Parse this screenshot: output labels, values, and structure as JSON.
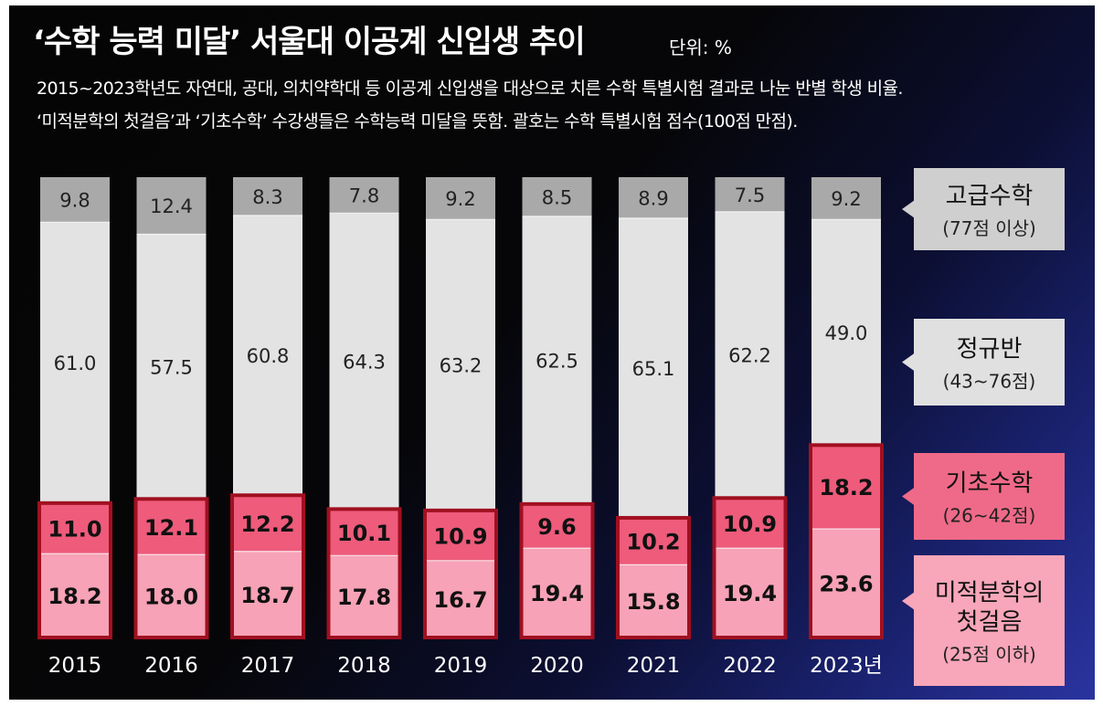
{
  "title": "‘수학 능력 미달’ 서울대 이공계 신입생 추이",
  "unit": "단위: %",
  "subtitle_line1": "2015~2023학년도 자연대, 공대, 의치약학대 등 이공계 신입생을 대상으로 치른 수학 특별시험 결과로 나눈 반별 학생 비율.",
  "subtitle_line2": "‘미적분학의 첫걸음’과 ‘기초수학’ 수강생들은 수학능력 미달을 뜻함. 괄호는 수학 특별시험 점수(100점 만점).",
  "chart_data": {
    "type": "bar",
    "stacked": true,
    "unit": "%",
    "categories": [
      "2015",
      "2016",
      "2017",
      "2018",
      "2019",
      "2020",
      "2021",
      "2022",
      "2023년"
    ],
    "series": [
      {
        "name": "미적분학의 첫걸음",
        "range": "(25점 이하)",
        "values": [
          18.2,
          18.0,
          18.7,
          17.8,
          16.7,
          19.4,
          15.8,
          19.4,
          23.6
        ],
        "color": "#f7a2b6"
      },
      {
        "name": "기초수학",
        "range": "(26~42점)",
        "values": [
          11.0,
          12.1,
          12.2,
          10.1,
          10.9,
          9.6,
          10.2,
          10.9,
          18.2
        ],
        "color": "#ee5b7b"
      },
      {
        "name": "정규반",
        "range": "(43~76점)",
        "values": [
          61.0,
          57.5,
          60.8,
          64.3,
          63.2,
          62.5,
          65.1,
          62.2,
          49.0
        ],
        "color": "#e3e3e3"
      },
      {
        "name": "고급수학",
        "range": "(77점 이상)",
        "values": [
          9.8,
          12.4,
          8.3,
          7.8,
          9.2,
          8.5,
          8.9,
          7.5,
          9.2
        ],
        "color": "#a9a9a9"
      }
    ],
    "legend_labels": [
      {
        "series": "고급수학",
        "lines": [
          "고급수학"
        ],
        "range": "(77점 이상)"
      },
      {
        "series": "정규반",
        "lines": [
          "정규반"
        ],
        "range": "(43~76점)"
      },
      {
        "series": "기초수학",
        "lines": [
          "기초수학"
        ],
        "range": "(26~42점)"
      },
      {
        "series": "미적분학의 첫걸음",
        "lines": [
          "미적분학의",
          "첫걸음"
        ],
        "range": "(25점 이하)"
      }
    ],
    "highlight_color": "#a01020",
    "ylim": [
      0,
      100
    ]
  }
}
